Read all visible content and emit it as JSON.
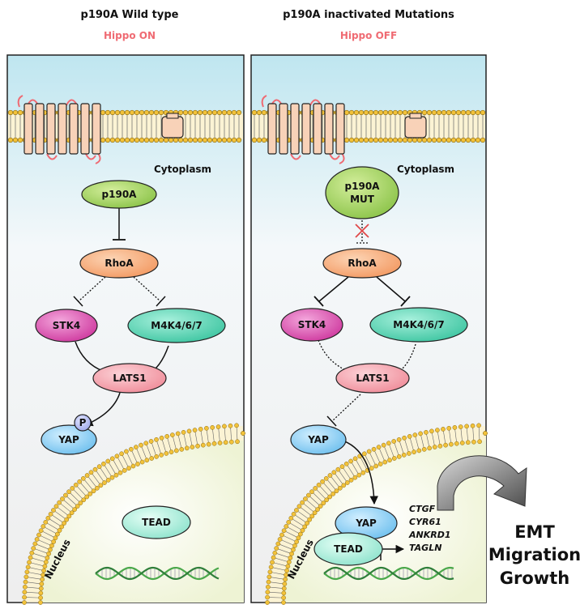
{
  "left_panel": {
    "title": "p190A Wild type",
    "subtitle": "Hippo ON",
    "cytoplasm_label": "Cytoplasm",
    "nucleus_label": "Nucleus",
    "nodes": {
      "p190a": "p190A",
      "rhoa": "RhoA",
      "stk4": "STK4",
      "m4k": "M4K4/6/7",
      "lats1": "LATS1",
      "yap": "YAP",
      "phospho": "P",
      "tead": "TEAD"
    }
  },
  "right_panel": {
    "title": "p190A inactivated Mutations",
    "subtitle": "Hippo OFF",
    "cytoplasm_label": "Cytoplasm",
    "nucleus_label": "Nucleus",
    "nodes": {
      "p190a_line1": "p190A",
      "p190a_line2": "MUT",
      "rhoa": "RhoA",
      "stk4": "STK4",
      "m4k": "M4K4/6/7",
      "lats1": "LATS1",
      "yap": "YAP",
      "yap_nuclear": "YAP",
      "tead": "TEAD"
    },
    "genes": [
      "CTGF",
      "CYR61",
      "ANKRD1",
      "TAGLN"
    ]
  },
  "outcomes": [
    "EMT",
    "Migration",
    "Growth"
  ],
  "colors": {
    "title_red": "#ef6b73",
    "p190a": "#9ccf5a",
    "rhoa": "#f6a874",
    "stk4": "#d94fae",
    "m4k": "#4fcfae",
    "lats1": "#f5a3ad",
    "yap": "#8fd0f5",
    "tead": "#a9ecdc",
    "receptor": "#f8d2b8",
    "loop": "#ef6b73",
    "membrane_head": "#f2c23a"
  }
}
